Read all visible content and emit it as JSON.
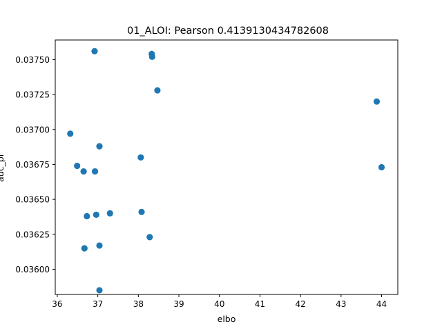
{
  "chart_data": {
    "type": "scatter",
    "title": "01_ALOI: Pearson 0.4139130434782608",
    "xlabel": "elbo",
    "ylabel": "auc_pr",
    "xlim": [
      35.95,
      44.4
    ],
    "ylim": [
      0.03582,
      0.03764
    ],
    "xticks": [
      36,
      37,
      38,
      39,
      40,
      41,
      42,
      43,
      44
    ],
    "yticks": [
      0.036,
      0.03625,
      0.0365,
      0.03675,
      0.037,
      0.03725,
      0.0375
    ],
    "ytick_labels": [
      "0.03600",
      "0.03625",
      "0.03650",
      "0.03675",
      "0.03700",
      "0.03725",
      "0.03750"
    ],
    "grid": false,
    "marker_color": "#1f77b4",
    "points": [
      {
        "x": 36.92,
        "y": 0.03756
      },
      {
        "x": 38.33,
        "y": 0.03754
      },
      {
        "x": 38.34,
        "y": 0.03752
      },
      {
        "x": 38.47,
        "y": 0.03728
      },
      {
        "x": 43.88,
        "y": 0.0372
      },
      {
        "x": 36.32,
        "y": 0.03697
      },
      {
        "x": 37.04,
        "y": 0.03688
      },
      {
        "x": 38.06,
        "y": 0.0368
      },
      {
        "x": 36.49,
        "y": 0.03674
      },
      {
        "x": 44.0,
        "y": 0.03673
      },
      {
        "x": 36.65,
        "y": 0.0367
      },
      {
        "x": 36.93,
        "y": 0.0367
      },
      {
        "x": 38.08,
        "y": 0.03641
      },
      {
        "x": 37.3,
        "y": 0.0364
      },
      {
        "x": 36.96,
        "y": 0.03639
      },
      {
        "x": 36.73,
        "y": 0.03638
      },
      {
        "x": 38.28,
        "y": 0.03623
      },
      {
        "x": 37.04,
        "y": 0.03617
      },
      {
        "x": 36.67,
        "y": 0.03615
      },
      {
        "x": 37.04,
        "y": 0.03585
      }
    ]
  }
}
